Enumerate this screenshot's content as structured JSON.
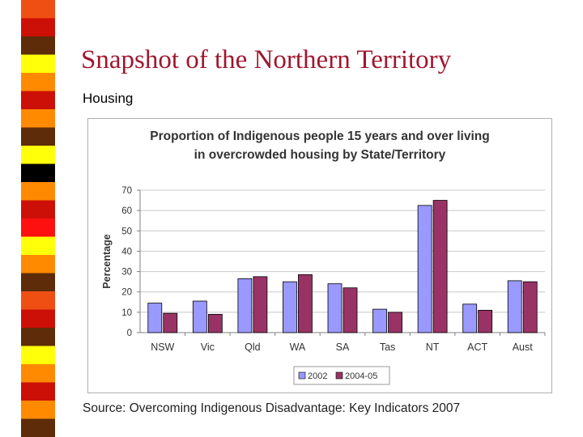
{
  "slide": {
    "title": "Snapshot of the Northern Territory",
    "subtitle": "Housing",
    "source": "Source: Overcoming Indigenous Disadvantage: Key Indicators 2007"
  },
  "stripe_colors": [
    "#f04f14",
    "#cc1008",
    "#5e2c08",
    "#ffff0a",
    "#ff8a00",
    "#cc1008",
    "#ff8a00",
    "#5e2c08",
    "#ffff0a",
    "#000000",
    "#ff8a00",
    "#cc1008",
    "#ff1010",
    "#ffff0a",
    "#ff8a00",
    "#5e2c08"
  ],
  "chart_data": {
    "type": "bar",
    "title_lines": [
      "Proportion of Indigenous people 15 years and over living",
      "in overcrowded housing by State/Territory"
    ],
    "ylabel": "Percentage",
    "xlabel": "",
    "ylim": [
      0,
      70
    ],
    "yticks": [
      0,
      10,
      20,
      30,
      40,
      50,
      60,
      70
    ],
    "grid": true,
    "legend_position": "bottom",
    "categories": [
      "NSW",
      "Vic",
      "Qld",
      "WA",
      "SA",
      "Tas",
      "NT",
      "ACT",
      "Aust"
    ],
    "series": [
      {
        "name": "2002",
        "color": "#9999ff",
        "values": [
          14.5,
          15.5,
          26.5,
          25,
          24,
          11.5,
          62.5,
          14,
          25.5
        ]
      },
      {
        "name": "2004-05",
        "color": "#993366",
        "values": [
          9.5,
          9,
          27.5,
          28.5,
          22,
          10,
          65,
          11,
          25
        ]
      }
    ]
  }
}
